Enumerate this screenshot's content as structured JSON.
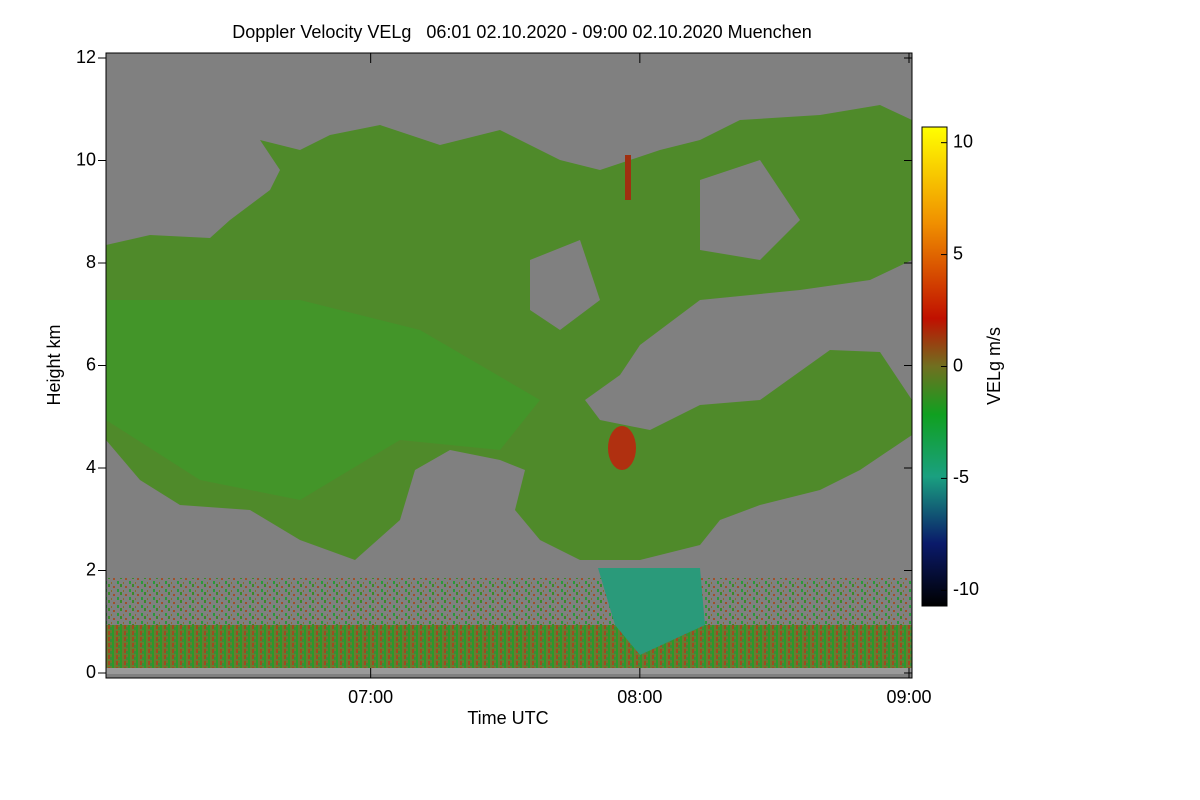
{
  "chart_data": {
    "type": "heatmap",
    "title": "Doppler Velocity VELg   06:01 02.10.2020 - 09:00 02.10.2020 Muenchen",
    "x_label": "Time UTC",
    "y_label": "Height km",
    "colorbar_label": "VELg m/s",
    "xlim": [
      6.0167,
      9.0
    ],
    "xticks": [
      {
        "value": 7,
        "label": "07:00"
      },
      {
        "value": 8,
        "label": "08:00"
      },
      {
        "value": 9,
        "label": "09:00"
      }
    ],
    "ylim": [
      0,
      12
    ],
    "yticks": [
      0,
      2,
      4,
      6,
      8,
      10,
      12
    ],
    "clim": [
      -10.7,
      10.7
    ],
    "cticks": [
      -10,
      -5,
      0,
      5,
      10
    ]
  }
}
